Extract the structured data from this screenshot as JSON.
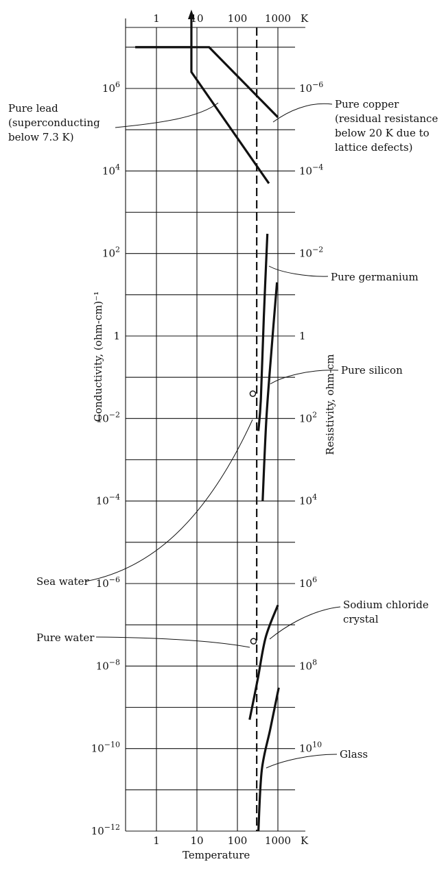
{
  "chart_data": {
    "type": "line",
    "title": "",
    "x_axis": {
      "label": "Temperature",
      "unit": "K",
      "scale": "log",
      "ticks": [
        "1",
        "10",
        "100",
        "1000"
      ],
      "range": [
        0.3,
        2500
      ]
    },
    "y_axis_left": {
      "label": "Conductivity, (ohm-cm)⁻¹",
      "scale": "log",
      "range": [
        1e-12,
        10000000.0
      ],
      "ticks": [
        {
          "v": 1000000.0,
          "base": "10",
          "exp": "6"
        },
        {
          "v": 10000.0,
          "base": "10",
          "exp": "4"
        },
        {
          "v": 100.0,
          "base": "10",
          "exp": "2"
        },
        {
          "v": 1,
          "base": "1",
          "exp": ""
        },
        {
          "v": 0.01,
          "base": "10",
          "exp": "−2"
        },
        {
          "v": 0.0001,
          "base": "10",
          "exp": "−4"
        },
        {
          "v": 1e-06,
          "base": "10",
          "exp": "−6"
        },
        {
          "v": 1e-08,
          "base": "10",
          "exp": "−8"
        },
        {
          "v": 1e-10,
          "base": "10",
          "exp": "−10"
        },
        {
          "v": 1e-12,
          "base": "10",
          "exp": "−12"
        }
      ]
    },
    "y_axis_right": {
      "label": "Resistivity, ohm-cm",
      "ticks": [
        {
          "v": 1000000.0,
          "base": "10",
          "exp": "−6"
        },
        {
          "v": 10000.0,
          "base": "10",
          "exp": "−4"
        },
        {
          "v": 100.0,
          "base": "10",
          "exp": "−2"
        },
        {
          "v": 1,
          "base": "1",
          "exp": ""
        },
        {
          "v": 0.01,
          "base": "10",
          "exp": "2"
        },
        {
          "v": 0.0001,
          "base": "10",
          "exp": "4"
        },
        {
          "v": 1e-06,
          "base": "10",
          "exp": "6"
        },
        {
          "v": 1e-08,
          "base": "10",
          "exp": "8"
        },
        {
          "v": 1e-10,
          "base": "10",
          "exp": "10"
        }
      ]
    },
    "grid": true,
    "reference_line": {
      "x": 300,
      "style": "dashed"
    },
    "series": [
      {
        "name": "Pure lead",
        "annotation": [
          "Pure lead",
          "(superconducting",
          "below 7.3 K)"
        ],
        "points": [
          [
            0.3,
            10000000.0
          ],
          [
            7.3,
            10000000.0
          ],
          [
            7.3,
            2500000.0
          ],
          [
            600,
            5000.0
          ]
        ],
        "arrow": {
          "x": 7.3,
          "from": 10000000.0,
          "to": 130000000.0
        }
      },
      {
        "name": "Pure copper",
        "annotation": [
          "Pure copper",
          "(residual resistance",
          "below 20 K due to",
          "lattice defects)"
        ],
        "points": [
          [
            0.3,
            10000000.0
          ],
          [
            20,
            10000000.0
          ],
          [
            1000,
            200000.0
          ]
        ]
      },
      {
        "name": "Pure germanium",
        "annotation": [
          "Pure germanium"
        ],
        "points": [
          [
            550,
            300
          ],
          [
            450,
            3
          ],
          [
            380,
            0.03
          ],
          [
            330,
            0.005
          ]
        ]
      },
      {
        "name": "Pure silicon",
        "annotation": [
          "Pure silicon"
        ],
        "points": [
          [
            950,
            20
          ],
          [
            700,
            0.5
          ],
          [
            520,
            0.01
          ],
          [
            420,
            0.0001
          ]
        ]
      },
      {
        "name": "Sodium chloride crystal",
        "annotation": [
          "Sodium chloride",
          "crystal"
        ],
        "points": [
          [
            1000,
            3e-07
          ],
          [
            500,
            5e-08
          ],
          [
            320,
            5e-09
          ],
          [
            200,
            5e-10
          ]
        ]
      },
      {
        "name": "Glass",
        "annotation": [
          "Glass"
        ],
        "points": [
          [
            1050,
            3e-09
          ],
          [
            650,
            3e-10
          ],
          [
            400,
            3e-11
          ],
          [
            330,
            1e-12
          ]
        ]
      }
    ],
    "points": [
      {
        "name": "Sea water",
        "x": 240,
        "y": 0.04,
        "annotation": [
          "Sea water"
        ]
      },
      {
        "name": "Pure water",
        "x": 250,
        "y": 4e-08,
        "annotation": [
          "Pure water"
        ]
      }
    ]
  }
}
